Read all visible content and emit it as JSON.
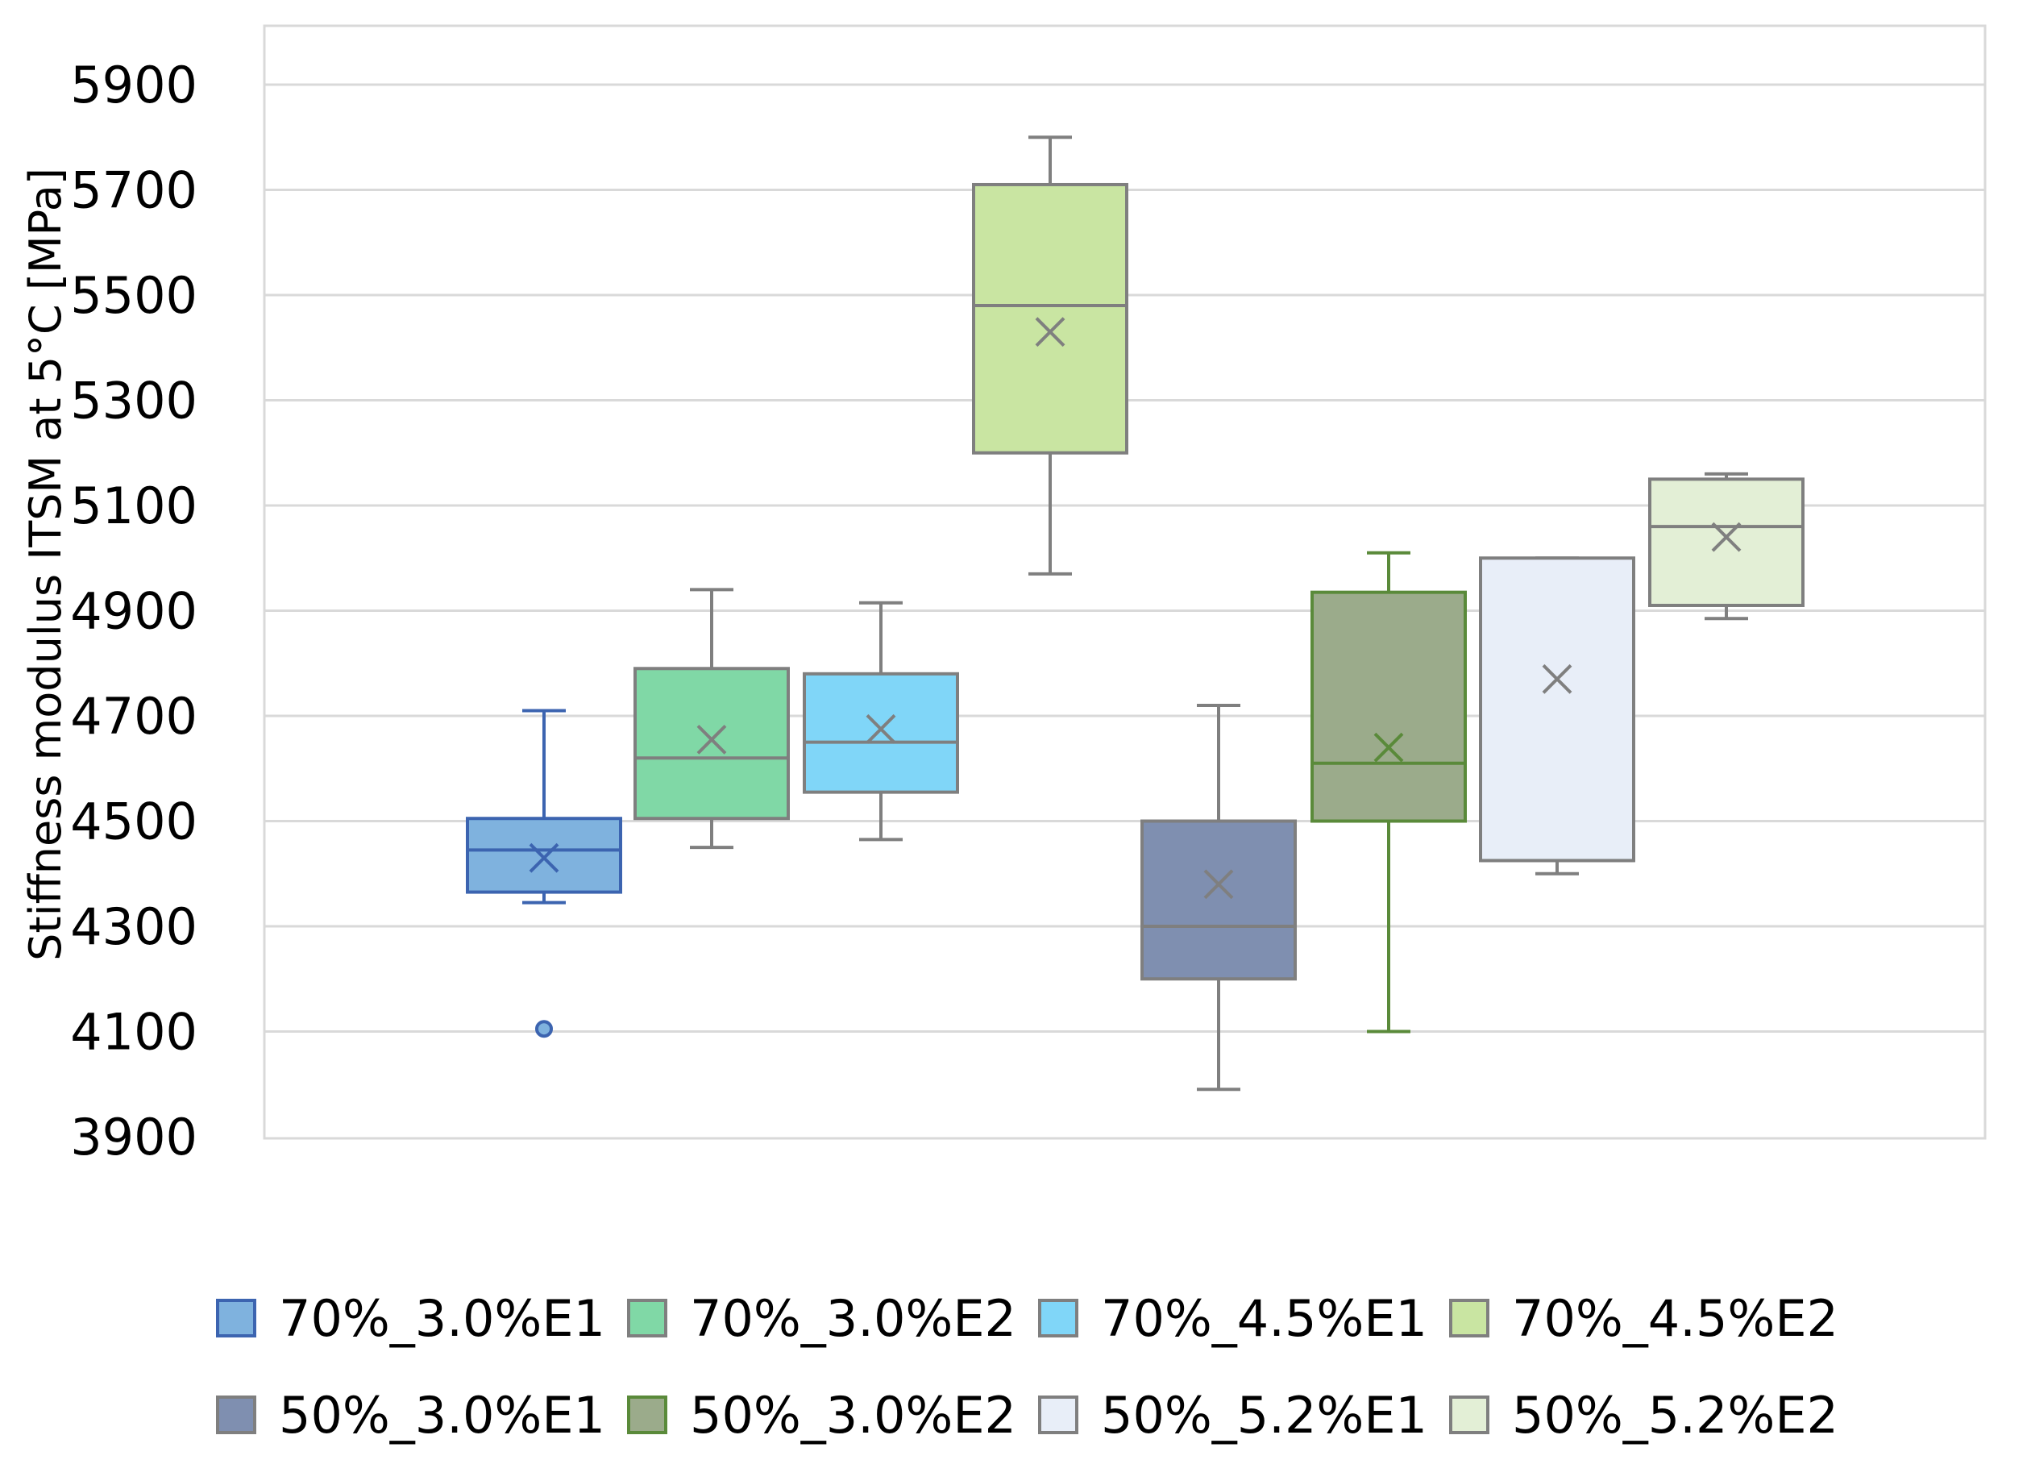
{
  "chart_data": {
    "type": "box",
    "title": "",
    "xlabel": "",
    "ylabel": "Stiffness modulus ITSM at 5°C [MPa]",
    "ylim": [
      3900,
      6000
    ],
    "yticks": [
      3900,
      4100,
      4300,
      4500,
      4700,
      4900,
      5100,
      5300,
      5500,
      5700,
      5900
    ],
    "grid": true,
    "legend_position": "bottom",
    "series": [
      {
        "name": "70%_3.0%E1",
        "fill": "#7fb2de",
        "stroke": "#3c64b0",
        "min": 4345,
        "q1": 4365,
        "median": 4445,
        "q3": 4505,
        "max": 4710,
        "mean": 4430,
        "outliers": [
          4105
        ]
      },
      {
        "name": "70%_3.0%E2",
        "fill": "#80d8a6",
        "stroke": "#7f7f7f",
        "min": 4450,
        "q1": 4505,
        "median": 4620,
        "q3": 4790,
        "max": 4940,
        "mean": 4655,
        "outliers": []
      },
      {
        "name": "70%_4.5%E1",
        "fill": "#80d6f8",
        "stroke": "#7f7f7f",
        "min": 4465,
        "q1": 4555,
        "median": 4650,
        "q3": 4780,
        "max": 4915,
        "mean": 4675,
        "outliers": []
      },
      {
        "name": "70%_4.5%E2",
        "fill": "#c9e5a2",
        "stroke": "#7f7f7f",
        "min": 4970,
        "q1": 5200,
        "median": 5480,
        "q3": 5710,
        "max": 5800,
        "mean": 5430,
        "outliers": []
      },
      {
        "name": "50%_3.0%E1",
        "fill": "#7f8fb0",
        "stroke": "#7f7f7f",
        "min": 3990,
        "q1": 4200,
        "median": 4300,
        "q3": 4500,
        "max": 4720,
        "mean": 4380,
        "outliers": []
      },
      {
        "name": "50%_3.0%E2",
        "fill": "#9bab8b",
        "stroke": "#5a8a3a",
        "min": 4100,
        "q1": 4500,
        "median": 4610,
        "q3": 4935,
        "max": 5010,
        "mean": 4640,
        "outliers": []
      },
      {
        "name": "50%_5.2%E1",
        "fill": "#e8eef8",
        "stroke": "#7f7f7f",
        "min": 4400,
        "q1": 4425,
        "median": 4425,
        "q3": 5000,
        "max": 5000,
        "mean": 4770,
        "outliers": []
      },
      {
        "name": "50%_5.2%E2",
        "fill": "#e3efd6",
        "stroke": "#7f7f7f",
        "min": 4885,
        "q1": 4910,
        "median": 5060,
        "q3": 5150,
        "max": 5160,
        "mean": 5040,
        "outliers": []
      }
    ]
  }
}
